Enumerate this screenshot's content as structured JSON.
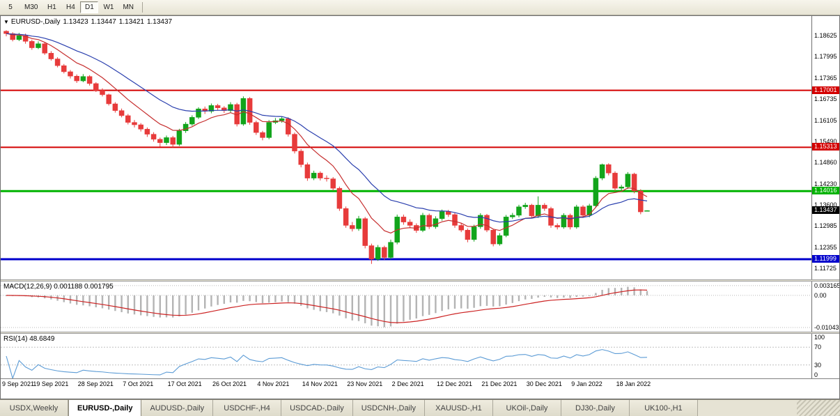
{
  "toolbar": {
    "timeframes": [
      "5",
      "M30",
      "H1",
      "H4",
      "D1",
      "W1",
      "MN"
    ],
    "active_timeframe": "D1"
  },
  "chart_header": {
    "symbol": "EURUSD-,Daily",
    "open": "1.13423",
    "high": "1.13447",
    "low": "1.13421",
    "close": "1.13437"
  },
  "macd_panel": {
    "label": "MACD(12,26,9) 0.001188 0.001795",
    "axis_labels": [
      "0.003165",
      "0.00",
      "-0.01043"
    ],
    "axis_values": [
      0.003165,
      0,
      -0.01043
    ]
  },
  "rsi_panel": {
    "label": "RSI(14) 48.6849",
    "axis_labels": [
      "100",
      "70",
      "30",
      "0"
    ],
    "axis_values": [
      100,
      70,
      30,
      0
    ],
    "levels": [
      70,
      30
    ]
  },
  "tabs": [
    "USDX,Weekly",
    "EURUSD-,Daily",
    "AUDUSD-,Daily",
    "USDCHF-,H4",
    "USDCAD-,Daily",
    "USDCNH-,Daily",
    "XAUUSD-,H1",
    "UKOil-,Daily",
    "DJ30-,Daily",
    "UK100-,H1"
  ],
  "active_tab": "EURUSD-,Daily",
  "chart_data": {
    "type": "candlestick",
    "title": "EURUSD-,Daily",
    "y_ticks": [
      "1.18625",
      "1.17995",
      "1.17365",
      "1.16735",
      "1.16105",
      "1.15490",
      "1.14860",
      "1.14230",
      "1.13600",
      "1.12985",
      "1.12355",
      "1.11725"
    ],
    "price_range": [
      1.114,
      1.192
    ],
    "x_labels": [
      "9 Sep 2021",
      "19 Sep 2021",
      "28 Sep 2021",
      "7 Oct 2021",
      "17 Oct 2021",
      "26 Oct 2021",
      "4 Nov 2021",
      "14 Nov 2021",
      "23 Nov 2021",
      "2 Dec 2021",
      "12 Dec 2021",
      "21 Dec 2021",
      "30 Dec 2021",
      "9 Jan 2022",
      "18 Jan 2022"
    ],
    "x_label_step": 7,
    "levels": [
      {
        "price": 1.17001,
        "label": "1.17001",
        "color": "#d40000",
        "width": 2
      },
      {
        "price": 1.15313,
        "label": "1.15313",
        "color": "#d40000",
        "width": 2
      },
      {
        "price": 1.14016,
        "label": "1.14016",
        "color": "#00b300",
        "width": 3
      },
      {
        "price": 1.11999,
        "label": "1.11999",
        "color": "#0000cc",
        "width": 3
      }
    ],
    "current_price": {
      "value": 1.13437,
      "label": "1.13437",
      "color": "#000000"
    },
    "colors": {
      "up": "#12a41b",
      "down": "#e73b3b",
      "ma_fast": "#c62f2f",
      "ma_slow": "#2a3fae",
      "macd_hist": "#b4b4b4",
      "macd_signal": "#cc2222",
      "rsi_line": "#5b9bd5"
    },
    "overlays": [
      {
        "name": "ma-fast",
        "type": "ema",
        "period": 9
      },
      {
        "name": "ma-slow",
        "type": "ema",
        "period": 21
      }
    ],
    "indicators": [
      {
        "name": "MACD",
        "params": [
          12,
          26,
          9
        ],
        "values": [
          0.001188,
          0.001795
        ]
      },
      {
        "name": "RSI",
        "params": [
          14
        ],
        "value": 48.6849
      }
    ],
    "candles": [
      [
        1.1875,
        1.1878,
        1.186,
        1.1868
      ],
      [
        1.1868,
        1.1872,
        1.1845,
        1.185
      ],
      [
        1.185,
        1.187,
        1.1846,
        1.1862
      ],
      [
        1.1862,
        1.1868,
        1.1838,
        1.1845
      ],
      [
        1.1845,
        1.185,
        1.182,
        1.1826
      ],
      [
        1.1826,
        1.1845,
        1.1822,
        1.1838
      ],
      [
        1.1838,
        1.1842,
        1.1805,
        1.181
      ],
      [
        1.181,
        1.1816,
        1.1788,
        1.1793
      ],
      [
        1.1793,
        1.1798,
        1.1768,
        1.1773
      ],
      [
        1.1773,
        1.1778,
        1.175,
        1.1755
      ],
      [
        1.1755,
        1.176,
        1.1735,
        1.1742
      ],
      [
        1.1742,
        1.1747,
        1.1722,
        1.1728
      ],
      [
        1.1728,
        1.1748,
        1.1724,
        1.1741
      ],
      [
        1.1741,
        1.1745,
        1.1714,
        1.172
      ],
      [
        1.172,
        1.1724,
        1.1695,
        1.17
      ],
      [
        1.17,
        1.1706,
        1.1682,
        1.1687
      ],
      [
        1.1687,
        1.169,
        1.1655,
        1.166
      ],
      [
        1.166,
        1.1665,
        1.1634,
        1.164
      ],
      [
        1.164,
        1.1646,
        1.162,
        1.1625
      ],
      [
        1.1625,
        1.163,
        1.1599,
        1.1605
      ],
      [
        1.1605,
        1.1612,
        1.159,
        1.1598
      ],
      [
        1.1598,
        1.1603,
        1.1578,
        1.1585
      ],
      [
        1.1585,
        1.159,
        1.1562,
        1.157
      ],
      [
        1.157,
        1.1576,
        1.1548,
        1.1555
      ],
      [
        1.1555,
        1.156,
        1.1533,
        1.1545
      ],
      [
        1.1545,
        1.1566,
        1.1538,
        1.156
      ],
      [
        1.156,
        1.1565,
        1.1531,
        1.154
      ],
      [
        1.154,
        1.1586,
        1.1535,
        1.158
      ],
      [
        1.158,
        1.1606,
        1.1574,
        1.16
      ],
      [
        1.16,
        1.1626,
        1.1595,
        1.162
      ],
      [
        1.162,
        1.165,
        1.1615,
        1.1645
      ],
      [
        1.1645,
        1.1652,
        1.163,
        1.1638
      ],
      [
        1.1638,
        1.1661,
        1.1632,
        1.1655
      ],
      [
        1.1655,
        1.166,
        1.164,
        1.1648
      ],
      [
        1.1648,
        1.1653,
        1.1633,
        1.164
      ],
      [
        1.164,
        1.1665,
        1.1634,
        1.1658
      ],
      [
        1.1658,
        1.1663,
        1.1593,
        1.16
      ],
      [
        1.16,
        1.1682,
        1.1595,
        1.1676
      ],
      [
        1.1676,
        1.168,
        1.1598,
        1.1605
      ],
      [
        1.1605,
        1.161,
        1.1568,
        1.1575
      ],
      [
        1.1575,
        1.158,
        1.1552,
        1.156
      ],
      [
        1.156,
        1.1612,
        1.1555,
        1.1605
      ],
      [
        1.1605,
        1.1618,
        1.16,
        1.161
      ],
      [
        1.161,
        1.1622,
        1.1604,
        1.1616
      ],
      [
        1.1616,
        1.162,
        1.1563,
        1.157
      ],
      [
        1.157,
        1.1575,
        1.1513,
        1.152
      ],
      [
        1.152,
        1.1526,
        1.1472,
        1.148
      ],
      [
        1.148,
        1.1486,
        1.1432,
        1.144
      ],
      [
        1.144,
        1.1462,
        1.1434,
        1.1455
      ],
      [
        1.1455,
        1.146,
        1.1433,
        1.144
      ],
      [
        1.144,
        1.1448,
        1.143,
        1.1438
      ],
      [
        1.1438,
        1.1443,
        1.1403,
        1.141
      ],
      [
        1.141,
        1.1415,
        1.1343,
        1.135
      ],
      [
        1.135,
        1.1356,
        1.1293,
        1.13
      ],
      [
        1.13,
        1.131,
        1.1282,
        1.129
      ],
      [
        1.129,
        1.1328,
        1.1284,
        1.132
      ],
      [
        1.132,
        1.1325,
        1.1232,
        1.124
      ],
      [
        1.124,
        1.1246,
        1.1186,
        1.12
      ],
      [
        1.12,
        1.1242,
        1.1195,
        1.1235
      ],
      [
        1.1235,
        1.124,
        1.1198,
        1.1205
      ],
      [
        1.1205,
        1.1258,
        1.12,
        1.125
      ],
      [
        1.125,
        1.1332,
        1.1244,
        1.1325
      ],
      [
        1.1325,
        1.1332,
        1.1302,
        1.131
      ],
      [
        1.131,
        1.1318,
        1.1292,
        1.13
      ],
      [
        1.13,
        1.1306,
        1.1278,
        1.1285
      ],
      [
        1.1285,
        1.1337,
        1.128,
        1.133
      ],
      [
        1.133,
        1.1335,
        1.1289,
        1.1296
      ],
      [
        1.1296,
        1.1327,
        1.129,
        1.132
      ],
      [
        1.132,
        1.1347,
        1.1314,
        1.1341
      ],
      [
        1.1341,
        1.1346,
        1.1325,
        1.1332
      ],
      [
        1.1332,
        1.1337,
        1.1293,
        1.13
      ],
      [
        1.13,
        1.1306,
        1.128,
        1.1286
      ],
      [
        1.1286,
        1.1291,
        1.125,
        1.1258
      ],
      [
        1.1258,
        1.1302,
        1.1252,
        1.1296
      ],
      [
        1.1296,
        1.1336,
        1.129,
        1.133
      ],
      [
        1.133,
        1.1334,
        1.128,
        1.1286
      ],
      [
        1.1286,
        1.129,
        1.1238,
        1.1245
      ],
      [
        1.1245,
        1.1277,
        1.124,
        1.127
      ],
      [
        1.127,
        1.1331,
        1.1265,
        1.1325
      ],
      [
        1.1325,
        1.1337,
        1.1319,
        1.133
      ],
      [
        1.133,
        1.1361,
        1.1324,
        1.1355
      ],
      [
        1.1355,
        1.1367,
        1.1349,
        1.136
      ],
      [
        1.136,
        1.1364,
        1.1321,
        1.1328
      ],
      [
        1.1328,
        1.1386,
        1.1322,
        1.136
      ],
      [
        1.136,
        1.1366,
        1.1343,
        1.135
      ],
      [
        1.135,
        1.1355,
        1.1293,
        1.13
      ],
      [
        1.13,
        1.1306,
        1.1288,
        1.1295
      ],
      [
        1.1295,
        1.1336,
        1.129,
        1.133
      ],
      [
        1.133,
        1.1335,
        1.1288,
        1.1295
      ],
      [
        1.1295,
        1.1361,
        1.129,
        1.1355
      ],
      [
        1.1355,
        1.136,
        1.1322,
        1.133
      ],
      [
        1.133,
        1.1364,
        1.1324,
        1.1358
      ],
      [
        1.1358,
        1.1446,
        1.1352,
        1.144
      ],
      [
        1.144,
        1.1483,
        1.1434,
        1.148
      ],
      [
        1.148,
        1.1484,
        1.1448,
        1.1455
      ],
      [
        1.1455,
        1.146,
        1.1402,
        1.141
      ],
      [
        1.141,
        1.142,
        1.1404,
        1.1414
      ],
      [
        1.1414,
        1.1458,
        1.1408,
        1.1452
      ],
      [
        1.1452,
        1.1456,
        1.1395,
        1.1402
      ],
      [
        1.1402,
        1.1407,
        1.1333,
        1.134
      ],
      [
        1.13423,
        1.13447,
        1.13421,
        1.13437
      ]
    ]
  }
}
